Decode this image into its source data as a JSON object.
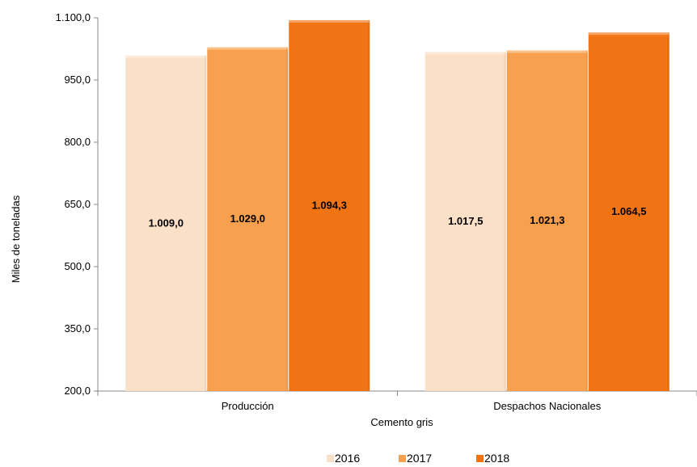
{
  "chart_data": {
    "type": "bar",
    "title": "",
    "xlabel": "Cemento gris",
    "ylabel": "Miles de toneladas",
    "categories": [
      "Producción",
      "Despachos Nacionales"
    ],
    "series": [
      {
        "name": "2016",
        "values": [
          1009.0,
          1017.5
        ],
        "labels": [
          "1.009,0",
          "1.017,5"
        ],
        "color": "#FBE0C8"
      },
      {
        "name": "2017",
        "values": [
          1029.0,
          1021.3
        ],
        "labels": [
          "1.029,0",
          "1.021,3"
        ],
        "color": "#F9A04E"
      },
      {
        "name": "2018",
        "values": [
          1094.3,
          1064.5
        ],
        "labels": [
          "1.094,3",
          "1.064,5"
        ],
        "color": "#F07314"
      }
    ],
    "ylim": [
      200,
      1100
    ],
    "yticks": [
      200,
      350,
      500,
      650,
      800,
      950,
      1100
    ],
    "ytick_labels": [
      "200,0",
      "350,0",
      "500,0",
      "650,0",
      "800,0",
      "950,0",
      "1.100,0"
    ],
    "grid": false,
    "legend_position": "bottom"
  }
}
